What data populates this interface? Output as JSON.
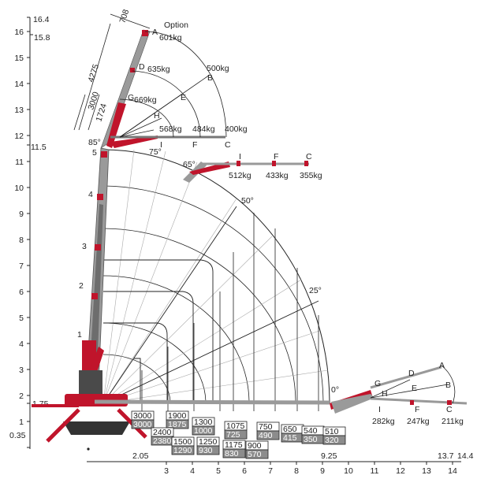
{
  "option_label": "Option",
  "y_axis": {
    "ticks": [
      "16",
      "15",
      "14",
      "13",
      "12",
      "11",
      "10",
      "9",
      "8",
      "7",
      "6",
      "5",
      "4",
      "3",
      "2",
      "1"
    ],
    "extra": {
      "top": "16.4",
      "second": "15.8",
      "mid": "11.5",
      "low": "1.75",
      "base": "0.35"
    }
  },
  "x_axis": {
    "ticks": [
      "3",
      "4",
      "5",
      "6",
      "7",
      "8",
      "9",
      "10",
      "11",
      "12",
      "13",
      "14"
    ],
    "extra": {
      "left": "2.05",
      "mid": "9.25",
      "r1": "13.7",
      "r2": "14.4"
    }
  },
  "boom_sections": [
    "1",
    "2",
    "3",
    "4",
    "5"
  ],
  "jib_dims": [
    "708",
    "4275",
    "3000",
    "1724"
  ],
  "jib_points_high": [
    {
      "id": "A",
      "load": "601kg"
    },
    {
      "id": "D",
      "load": "635kg"
    },
    {
      "id": "B",
      "load": "500kg"
    },
    {
      "id": "E",
      "load": ""
    },
    {
      "id": "G",
      "load": "669kg"
    },
    {
      "id": "H",
      "load": ""
    },
    {
      "id": "I",
      "load": "568kg"
    },
    {
      "id": "F",
      "load": "484kg"
    },
    {
      "id": "C",
      "load": "400kg"
    }
  ],
  "jib_points_mid": [
    {
      "id": "I",
      "load": "512kg"
    },
    {
      "id": "F",
      "load": "433kg"
    },
    {
      "id": "C",
      "load": "355kg"
    }
  ],
  "jib_points_low": [
    {
      "id": "A",
      "load": ""
    },
    {
      "id": "D",
      "load": ""
    },
    {
      "id": "B",
      "load": ""
    },
    {
      "id": "G",
      "load": ""
    },
    {
      "id": "E",
      "load": ""
    },
    {
      "id": "H",
      "load": ""
    },
    {
      "id": "I",
      "load": "282kg"
    },
    {
      "id": "F",
      "load": "247kg"
    },
    {
      "id": "C",
      "load": "211kg"
    }
  ],
  "angles": [
    "85°",
    "75°",
    "65°",
    "50°",
    "25°",
    "0°"
  ],
  "capacity_boxes": [
    {
      "top": "3000",
      "bottom": "3000"
    },
    {
      "top": "1900",
      "bottom": "1875"
    },
    {
      "top": "2400",
      "bottom": "2380"
    },
    {
      "top": "1300",
      "bottom": "1000"
    },
    {
      "top": "1500",
      "bottom": "1290"
    },
    {
      "top": "1250",
      "bottom": "930"
    },
    {
      "top": "1075",
      "bottom": "725"
    },
    {
      "top": "1175",
      "bottom": "830"
    },
    {
      "top": "900",
      "bottom": "570"
    },
    {
      "top": "750",
      "bottom": "490"
    },
    {
      "top": "650",
      "bottom": "415"
    },
    {
      "top": "540",
      "bottom": "350"
    },
    {
      "top": "510",
      "bottom": "320"
    }
  ],
  "colors": {
    "boom": "#c0142b",
    "steel": "#8a8a8a",
    "dark": "#333333",
    "line": "#222222",
    "grid": "#bbbbbb",
    "box_fill": "#8c8c8c"
  }
}
